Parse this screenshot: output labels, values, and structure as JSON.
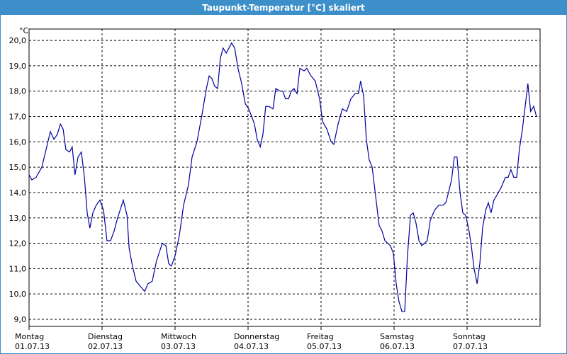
{
  "chart_data": {
    "type": "line",
    "title": "Taupunkt-Temperatur [°C] skaliert",
    "y_label": "°C",
    "color": "#0000a0",
    "grid": true,
    "xlim": [
      0,
      168
    ],
    "ylim": [
      8.72,
      20.45
    ],
    "xticks": [
      {
        "value": 0,
        "label": "Montag"
      },
      {
        "value": 24,
        "label": "Dienstag"
      },
      {
        "value": 48,
        "label": "Mittwoch"
      },
      {
        "value": 72,
        "label": "Donnerstag"
      },
      {
        "value": 96,
        "label": "Freitag"
      },
      {
        "value": 120,
        "label": "Samstag"
      },
      {
        "value": 144,
        "label": "Sonntag"
      }
    ],
    "xtick_dates": [
      "01.07.13",
      "02.07.13",
      "03.07.13",
      "04.07.13",
      "05.07.13",
      "06.07.13",
      "07.07.13"
    ],
    "yticks": [
      {
        "value": 9,
        "label": "9,0"
      },
      {
        "value": 10,
        "label": "10,0"
      },
      {
        "value": 11,
        "label": "11,0"
      },
      {
        "value": 12,
        "label": "12,0"
      },
      {
        "value": 13,
        "label": "13,0"
      },
      {
        "value": 14,
        "label": "14,0"
      },
      {
        "value": 15,
        "label": "15,0"
      },
      {
        "value": 16,
        "label": "16,0"
      },
      {
        "value": 17,
        "label": "17,0"
      },
      {
        "value": 18,
        "label": "18,0"
      },
      {
        "value": 19,
        "label": "19,0"
      },
      {
        "value": 20,
        "label": "20,0"
      }
    ],
    "x": [
      0,
      0.9,
      2.3,
      4.2,
      5.8,
      7.0,
      8.2,
      9.3,
      10.3,
      11.2,
      12.1,
      13.3,
      14.2,
      15.1,
      16.1,
      17.2,
      18.2,
      19.1,
      20.0,
      21.0,
      22.1,
      23.3,
      24.5,
      25.6,
      26.8,
      28.0,
      29.1,
      31.0,
      32.2,
      32.9,
      34.0,
      35.2,
      36.6,
      38.0,
      39.1,
      40.5,
      41.9,
      43.8,
      45.0,
      45.9,
      46.8,
      48.0,
      49.4,
      50.8,
      52.4,
      53.6,
      55.2,
      56.9,
      58.3,
      59.2,
      60.1,
      61.0,
      62.0,
      62.9,
      63.8,
      64.8,
      65.7,
      66.6,
      67.6,
      68.7,
      69.9,
      71.1,
      72.2,
      73.2,
      74.1,
      75.0,
      76.0,
      76.9,
      77.8,
      78.8,
      80.2,
      81.1,
      82.5,
      83.4,
      84.3,
      85.3,
      86.2,
      87.1,
      88.1,
      89.0,
      90.4,
      91.3,
      92.7,
      94.1,
      95.5,
      96.5,
      97.9,
      99.3,
      100.2,
      101.6,
      103.0,
      104.4,
      105.8,
      107.2,
      108.3,
      109.0,
      110.0,
      110.9,
      111.8,
      112.8,
      114.2,
      115.1,
      116.0,
      117.0,
      117.9,
      118.8,
      119.8,
      120.7,
      121.6,
      122.6,
      123.5,
      124.4,
      125.4,
      126.3,
      127.2,
      128.2,
      129.1,
      130.0,
      130.9,
      131.9,
      133.3,
      134.7,
      136.1,
      137.0,
      137.9,
      138.9,
      139.8,
      140.7,
      141.7,
      142.6,
      143.5,
      144.5,
      145.4,
      146.3,
      147.3,
      148.2,
      149.1,
      150.1,
      151.0,
      151.9,
      152.8,
      153.8,
      155.2,
      156.6,
      157.5,
      158.4,
      159.4,
      160.3,
      161.2,
      162.2,
      163.1,
      164.0,
      164.9,
      165.9,
      166.8
    ],
    "values": [
      14.7,
      14.5,
      14.6,
      15.0,
      15.8,
      16.4,
      16.1,
      16.3,
      16.7,
      16.5,
      15.7,
      15.6,
      15.8,
      14.7,
      15.4,
      15.6,
      14.6,
      13.2,
      12.6,
      13.2,
      13.5,
      13.7,
      13.3,
      12.1,
      12.1,
      12.5,
      13.0,
      13.7,
      13.1,
      11.8,
      11.1,
      10.5,
      10.3,
      10.1,
      10.4,
      10.5,
      11.3,
      12.0,
      11.9,
      11.2,
      11.1,
      11.5,
      12.3,
      13.5,
      14.3,
      15.4,
      16.0,
      17.1,
      18.1,
      18.6,
      18.5,
      18.2,
      18.1,
      19.3,
      19.7,
      19.5,
      19.7,
      19.9,
      19.7,
      18.9,
      18.3,
      17.5,
      17.3,
      17.0,
      16.7,
      16.1,
      15.8,
      16.3,
      17.4,
      17.4,
      17.3,
      18.1,
      18.0,
      18.0,
      17.7,
      17.7,
      18.0,
      18.1,
      17.9,
      18.9,
      18.8,
      18.9,
      18.6,
      18.4,
      17.7,
      16.8,
      16.5,
      16.0,
      15.9,
      16.7,
      17.3,
      17.2,
      17.7,
      17.9,
      17.9,
      18.4,
      17.8,
      16.1,
      15.3,
      15.0,
      13.6,
      12.7,
      12.5,
      12.1,
      12.0,
      11.9,
      11.6,
      10.4,
      9.7,
      9.3,
      9.3,
      11.5,
      13.1,
      13.2,
      12.8,
      12.1,
      11.9,
      12.0,
      12.1,
      12.9,
      13.3,
      13.5,
      13.5,
      13.6,
      14.0,
      14.5,
      15.4,
      15.4,
      14.0,
      13.2,
      13.1,
      12.6,
      11.9,
      11.0,
      10.4,
      11.2,
      12.6,
      13.3,
      13.6,
      13.2,
      13.7,
      13.9,
      14.2,
      14.6,
      14.6,
      14.9,
      14.6,
      14.6,
      15.7,
      16.5,
      17.4,
      18.3,
      17.2,
      17.4,
      17.0
    ]
  }
}
